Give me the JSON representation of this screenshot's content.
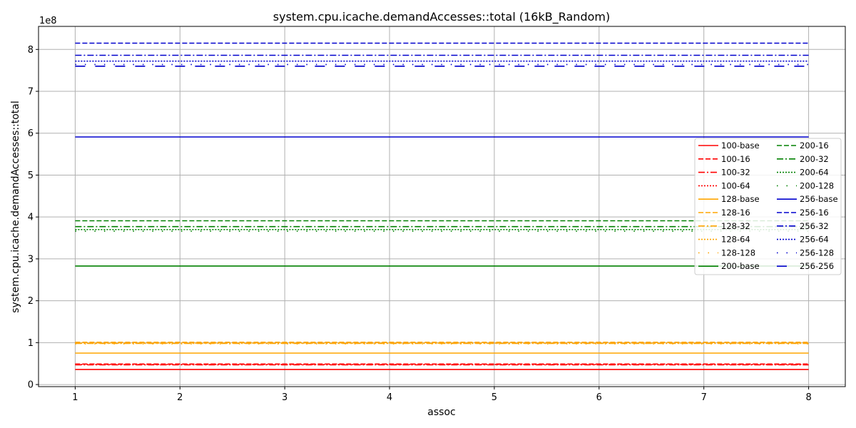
{
  "chart_data": {
    "type": "line",
    "title": "system.cpu.icache.demandAccesses::total (16kB_Random)",
    "xlabel": "assoc",
    "ylabel": "system.cpu.icache.demandAccesses::total",
    "y_offset_label": "1e8",
    "y_scale_factor": 100000000,
    "x": [
      1,
      2,
      3,
      4,
      5,
      6,
      7,
      8
    ],
    "xlim": [
      0.65,
      8.35
    ],
    "ylim": [
      -0.05,
      8.55
    ],
    "x_ticks": [
      1,
      2,
      3,
      4,
      5,
      6,
      7,
      8
    ],
    "y_ticks": [
      0,
      1,
      2,
      3,
      4,
      5,
      6,
      7,
      8
    ],
    "grid": true,
    "legend_position": "center-right",
    "legend_columns": 2,
    "series": [
      {
        "name": "100-base",
        "color": "#ff0000",
        "dash": "solid",
        "value": 0.36
      },
      {
        "name": "100-16",
        "color": "#ff0000",
        "dash": "dashed",
        "value": 0.49
      },
      {
        "name": "100-32",
        "color": "#ff0000",
        "dash": "dashdot",
        "value": 0.47
      },
      {
        "name": "100-64",
        "color": "#ff0000",
        "dash": "dotted",
        "value": 0.48
      },
      {
        "name": "128-base",
        "color": "#ffa500",
        "dash": "solid",
        "value": 0.75
      },
      {
        "name": "128-16",
        "color": "#ffa500",
        "dash": "dashed",
        "value": 1.01
      },
      {
        "name": "128-32",
        "color": "#ffa500",
        "dash": "dashdot",
        "value": 0.98
      },
      {
        "name": "128-64",
        "color": "#ffa500",
        "dash": "dotted",
        "value": 0.99
      },
      {
        "name": "128-128",
        "color": "#ffa500",
        "dash": "loosedot",
        "value": 0.97
      },
      {
        "name": "200-base",
        "color": "#008000",
        "dash": "solid",
        "value": 2.83
      },
      {
        "name": "200-16",
        "color": "#008000",
        "dash": "dashed",
        "value": 3.91
      },
      {
        "name": "200-32",
        "color": "#008000",
        "dash": "dashdot",
        "value": 3.77
      },
      {
        "name": "200-64",
        "color": "#008000",
        "dash": "dotted",
        "value": 3.7
      },
      {
        "name": "200-128",
        "color": "#008000",
        "dash": "loosedot",
        "value": 3.66
      },
      {
        "name": "256-base",
        "color": "#0000cd",
        "dash": "solid",
        "value": 5.91
      },
      {
        "name": "256-16",
        "color": "#0000cd",
        "dash": "dashed",
        "value": 8.15
      },
      {
        "name": "256-32",
        "color": "#0000cd",
        "dash": "dashdot",
        "value": 7.86
      },
      {
        "name": "256-64",
        "color": "#0000cd",
        "dash": "dotted",
        "value": 7.72
      },
      {
        "name": "256-128",
        "color": "#0000cd",
        "dash": "loosedot",
        "value": 7.64
      },
      {
        "name": "256-256",
        "color": "#0000cd",
        "dash": "longdash",
        "value": 7.6
      }
    ]
  }
}
